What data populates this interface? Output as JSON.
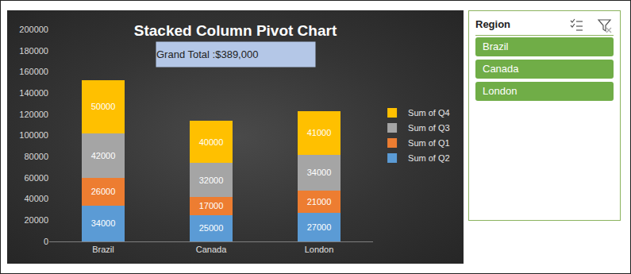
{
  "chart_data": {
    "type": "bar",
    "title": "Stacked Column Pivot Chart",
    "annotations": [
      "Grand Total :$389,000"
    ],
    "categories": [
      "Brazil",
      "Canada",
      "London"
    ],
    "series": [
      {
        "name": "Sum of Q2",
        "color": "#5B9BD5",
        "values": [
          34000,
          25000,
          27000
        ]
      },
      {
        "name": "Sum of Q1",
        "color": "#ED7D31",
        "values": [
          26000,
          17000,
          21000
        ]
      },
      {
        "name": "Sum of Q3",
        "color": "#A5A5A5",
        "values": [
          42000,
          32000,
          34000
        ]
      },
      {
        "name": "Sum of Q4",
        "color": "#FFC000",
        "values": [
          50000,
          40000,
          41000
        ]
      }
    ],
    "stacked": true,
    "data_labels": true,
    "ylim": [
      0,
      200000
    ],
    "yticks": [
      0,
      20000,
      40000,
      60000,
      80000,
      100000,
      120000,
      140000,
      160000,
      180000,
      200000
    ],
    "grid": false,
    "legend": "right"
  },
  "slicer": {
    "title": "Region",
    "items": [
      "Brazil",
      "Canada",
      "London"
    ]
  }
}
